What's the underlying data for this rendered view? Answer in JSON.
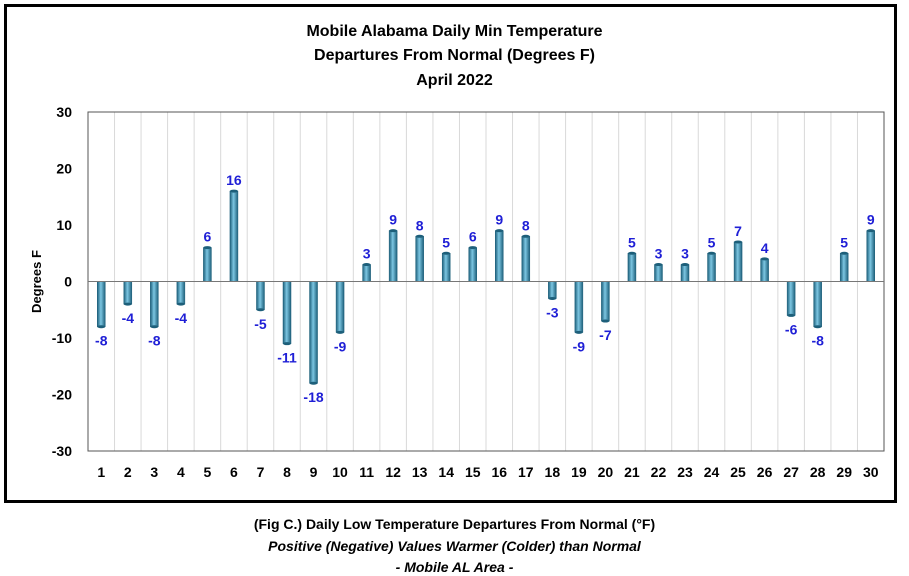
{
  "chart_data": {
    "type": "bar",
    "title": [
      "Mobile Alabama Daily Min Temperature",
      "Departures From Normal (Degrees F)",
      "April 2022"
    ],
    "xlabel": "",
    "ylabel": "Degrees F",
    "ylim": [
      -30,
      30
    ],
    "yticks": [
      30,
      20,
      10,
      0,
      -10,
      -20,
      -30
    ],
    "categories": [
      "1",
      "2",
      "3",
      "4",
      "5",
      "6",
      "7",
      "8",
      "9",
      "10",
      "11",
      "12",
      "13",
      "14",
      "15",
      "16",
      "17",
      "18",
      "19",
      "20",
      "21",
      "22",
      "23",
      "24",
      "25",
      "26",
      "27",
      "28",
      "29",
      "30"
    ],
    "values": [
      -8,
      -4,
      -8,
      -4,
      6,
      16,
      -5,
      -11,
      -18,
      -9,
      3,
      9,
      8,
      5,
      6,
      9,
      8,
      -3,
      -9,
      -7,
      5,
      3,
      3,
      5,
      7,
      4,
      -6,
      -8,
      5,
      9
    ],
    "grid": "vertical",
    "bar_color": "#3a8fb0",
    "label_color": "#1f1fd6"
  },
  "caption": {
    "line1": "(Fig C.) Daily Low Temperature Departures From Normal (°F)",
    "line2": "Positive (Negative) Values Warmer (Colder) than Normal",
    "line3": "- Mobile AL Area -"
  }
}
